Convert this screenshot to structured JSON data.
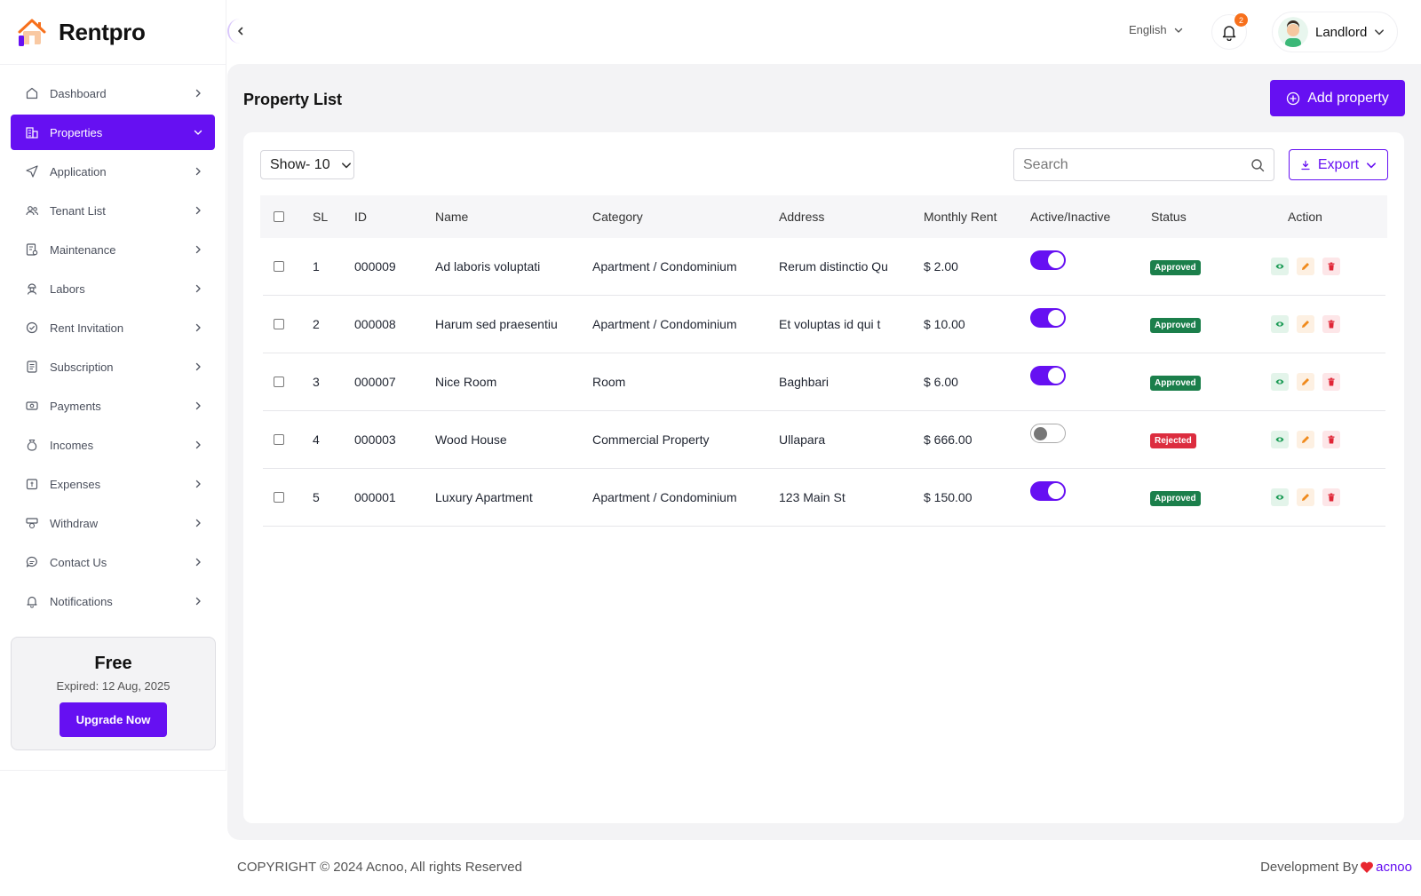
{
  "app": {
    "name": "Rentpro"
  },
  "header": {
    "language": "English",
    "notification_count": "2",
    "user_name": "Landlord"
  },
  "sidebar": {
    "items": [
      {
        "label": "Dashboard",
        "icon": "home-icon"
      },
      {
        "label": "Properties",
        "icon": "building-icon",
        "active": true
      },
      {
        "label": "Application",
        "icon": "send-icon"
      },
      {
        "label": "Tenant List",
        "icon": "users-icon"
      },
      {
        "label": "Maintenance",
        "icon": "maintenance-icon"
      },
      {
        "label": "Labors",
        "icon": "labor-icon"
      },
      {
        "label": "Rent Invitation",
        "icon": "invitation-icon"
      },
      {
        "label": "Subscription",
        "icon": "subscription-icon"
      },
      {
        "label": "Payments",
        "icon": "payments-icon"
      },
      {
        "label": "Incomes",
        "icon": "income-icon"
      },
      {
        "label": "Expenses",
        "icon": "expense-icon"
      },
      {
        "label": "Withdraw",
        "icon": "withdraw-icon"
      },
      {
        "label": "Contact Us",
        "icon": "chat-icon"
      },
      {
        "label": "Notifications",
        "icon": "bell-icon"
      }
    ],
    "plan": {
      "name": "Free",
      "expiry": "Expired: 12 Aug, 2025",
      "upgrade_label": "Upgrade Now"
    }
  },
  "main": {
    "title": "Property List",
    "add_label": "Add property",
    "show_label": "Show- 10",
    "search_placeholder": "Search",
    "export_label": "Export",
    "columns": [
      "SL",
      "ID",
      "Name",
      "Category",
      "Address",
      "Monthly Rent",
      "Active/Inactive",
      "Status",
      "Action"
    ],
    "rows": [
      {
        "sl": "1",
        "id": "000009",
        "name": "Ad laboris voluptati",
        "category": "Apartment / Condominium",
        "address": "Rerum distinctio Qu",
        "rent": "$ 2.00",
        "active": true,
        "status": "Approved"
      },
      {
        "sl": "2",
        "id": "000008",
        "name": "Harum sed praesentiu",
        "category": "Apartment / Condominium",
        "address": "Et voluptas id qui t",
        "rent": "$ 10.00",
        "active": true,
        "status": "Approved"
      },
      {
        "sl": "3",
        "id": "000007",
        "name": "Nice Room",
        "category": "Room",
        "address": "Baghbari",
        "rent": "$ 6.00",
        "active": true,
        "status": "Approved"
      },
      {
        "sl": "4",
        "id": "000003",
        "name": "Wood House",
        "category": "Commercial Property",
        "address": "Ullapara",
        "rent": "$ 666.00",
        "active": false,
        "status": "Rejected"
      },
      {
        "sl": "5",
        "id": "000001",
        "name": "Luxury Apartment",
        "category": "Apartment / Condominium",
        "address": "123 Main St",
        "rent": "$ 150.00",
        "active": true,
        "status": "Approved"
      }
    ]
  },
  "footer": {
    "copyright": "COPYRIGHT © 2024 Acnoo, All rights Reserved",
    "dev_prefix": "Development By",
    "dev_brand": "acnoo"
  },
  "colors": {
    "accent": "#6610f2",
    "approved": "#1b7f4b",
    "rejected": "#dc2d3f",
    "badge": "#f7701c"
  }
}
